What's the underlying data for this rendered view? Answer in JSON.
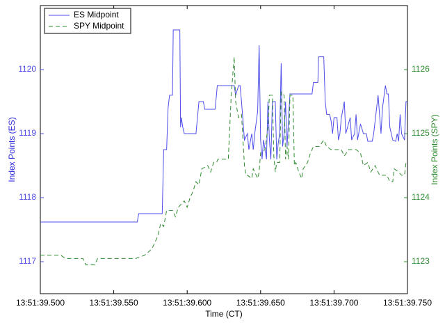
{
  "chart_data": {
    "type": "line",
    "xlabel": "Time (CT)",
    "ylabel": "Index Points (ES)",
    "y2label": "Index Points (SPY)",
    "xlim": [
      500,
      750
    ],
    "xticks": [
      {
        "value": 500,
        "label": "13:51:39.500"
      },
      {
        "value": 550,
        "label": "13:51:39.550"
      },
      {
        "value": 600,
        "label": "13:51:39.600"
      },
      {
        "value": 650,
        "label": "13:51:39.650"
      },
      {
        "value": 700,
        "label": "13:51:39.700"
      },
      {
        "value": 750,
        "label": "13:51:39.750"
      }
    ],
    "ylim": [
      1116.5,
      1121
    ],
    "yticks": [
      1117,
      1118,
      1119,
      1120
    ],
    "y2lim": [
      1122.5,
      1127
    ],
    "y2ticks": [
      1123,
      1124,
      1125,
      1126
    ],
    "legend": "upper-left",
    "series": [
      {
        "name": "ES Midpoint",
        "color": "#4d4dea",
        "dash": "solid",
        "axis": "y",
        "x": [
          500,
          566,
          567,
          583,
          584,
          586,
          587,
          588,
          590,
          590.5,
          595,
          595.5,
          596,
          597,
          598,
          606,
          607,
          608,
          611,
          612,
          619,
          620,
          620.5,
          632,
          633,
          635,
          636,
          637,
          638,
          639,
          641,
          642,
          644,
          645,
          646,
          648,
          649,
          650,
          651,
          652,
          654,
          655,
          656,
          657,
          658,
          660,
          661,
          662,
          663,
          664,
          665,
          666,
          667,
          668,
          670,
          685,
          686,
          689,
          689.5,
          693,
          694,
          695,
          697,
          698,
          699,
          700,
          702,
          703,
          704,
          705,
          707,
          708,
          711,
          712,
          714,
          715,
          716,
          718,
          720,
          722,
          723,
          726,
          727,
          730,
          732,
          733,
          735,
          736,
          737,
          738,
          740,
          742,
          743,
          744,
          745,
          746,
          748,
          749,
          750
        ],
        "values": [
          1117.62,
          1117.62,
          1117.75,
          1117.75,
          1118.75,
          1118.75,
          1119.4,
          1119.6,
          1119.6,
          1120.62,
          1120.62,
          1119.1,
          1119.25,
          1119.1,
          1119.0,
          1119.0,
          1119.25,
          1119.5,
          1119.5,
          1119.38,
          1119.38,
          1119.62,
          1119.75,
          1119.75,
          1119.6,
          1119.75,
          1119.75,
          1119.5,
          1119.2,
          1118.9,
          1119.0,
          1118.75,
          1119.0,
          1118.75,
          1119.0,
          1119.35,
          1120.38,
          1118.9,
          1118.6,
          1118.9,
          1118.6,
          1119.5,
          1118.9,
          1118.6,
          1119.5,
          1119.5,
          1118.6,
          1118.85,
          1119.0,
          1120.1,
          1118.8,
          1119.0,
          1119.5,
          1118.8,
          1119.62,
          1119.62,
          1119.8,
          1119.8,
          1120.2,
          1120.2,
          1119.5,
          1119.3,
          1119.3,
          1119.2,
          1119.0,
          1119.25,
          1119.25,
          1118.9,
          1119.0,
          1119.25,
          1119.5,
          1119.0,
          1119.25,
          1118.9,
          1119.0,
          1119.3,
          1118.9,
          1119.15,
          1119.0,
          1119.0,
          1118.88,
          1118.88,
          1119.0,
          1119.6,
          1119.0,
          1119.4,
          1119.75,
          1119.62,
          1119.62,
          1119.1,
          1118.9,
          1118.88,
          1119.0,
          1118.88,
          1119.3,
          1119.0,
          1118.9,
          1119.5,
          1119.5
        ]
      },
      {
        "name": "SPY Midpoint",
        "color": "#2e8b2e",
        "dash": "dashed",
        "axis": "y2",
        "x": [
          500,
          514,
          517,
          529,
          531,
          537,
          539,
          565,
          571,
          576,
          580,
          582,
          584,
          586,
          590,
          592,
          594,
          596,
          598,
          600,
          602,
          604,
          606,
          608,
          610,
          614,
          616,
          618,
          620,
          621,
          628,
          630,
          632,
          633,
          635,
          637,
          639,
          640,
          641,
          644,
          645,
          646,
          648,
          649,
          650,
          653,
          655,
          656,
          658,
          659,
          660,
          661,
          663,
          664,
          666,
          667,
          668,
          669,
          670,
          672,
          673,
          674,
          676,
          678,
          679,
          682,
          684,
          686,
          690,
          693,
          695,
          698,
          705,
          707,
          710,
          715,
          718,
          720,
          723,
          725,
          728,
          731,
          736,
          738,
          740,
          741,
          744,
          746,
          748,
          749,
          750
        ],
        "values": [
          1123.1,
          1123.1,
          1123.05,
          1123.05,
          1122.95,
          1122.95,
          1123.05,
          1123.05,
          1123.1,
          1123.2,
          1123.4,
          1123.6,
          1123.55,
          1123.8,
          1123.8,
          1123.7,
          1123.85,
          1123.9,
          1123.95,
          1123.85,
          1124.0,
          1124.1,
          1124.25,
          1124.2,
          1124.45,
          1124.5,
          1124.4,
          1124.55,
          1124.55,
          1124.6,
          1124.6,
          1125.6,
          1126.2,
          1125.5,
          1125.25,
          1125.3,
          1124.5,
          1124.35,
          1124.35,
          1124.3,
          1124.45,
          1124.4,
          1124.3,
          1124.4,
          1124.7,
          1124.75,
          1125.1,
          1125.6,
          1125.6,
          1124.65,
          1124.4,
          1124.55,
          1124.55,
          1125.65,
          1125.6,
          1124.6,
          1124.8,
          1124.6,
          1125.6,
          1125.6,
          1124.5,
          1124.55,
          1124.4,
          1124.3,
          1124.45,
          1124.55,
          1124.7,
          1124.8,
          1124.8,
          1124.9,
          1124.8,
          1124.75,
          1124.75,
          1124.65,
          1124.75,
          1124.75,
          1124.7,
          1124.5,
          1124.55,
          1124.4,
          1124.5,
          1124.35,
          1124.35,
          1124.25,
          1124.25,
          1124.45,
          1124.4,
          1124.35,
          1124.35,
          1124.55,
          1124.55
        ]
      }
    ]
  }
}
